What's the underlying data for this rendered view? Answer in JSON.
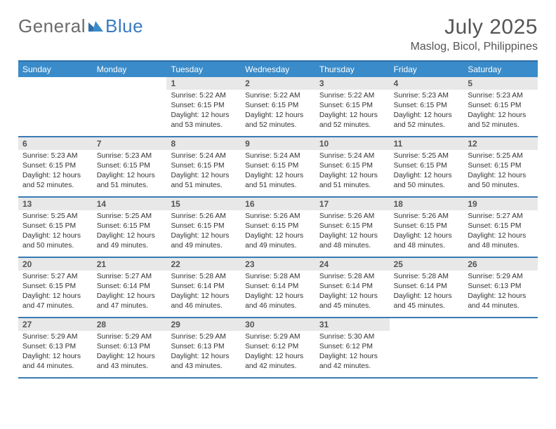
{
  "brand": {
    "part1": "General",
    "part2": "Blue"
  },
  "title": "July 2025",
  "location": "Maslog, Bicol, Philippines",
  "colors": {
    "header_bg": "#3a8bc9",
    "border": "#3a7bb5",
    "daynum_bg": "#e8e8e8",
    "text": "#333333",
    "brand_grey": "#6b6b6b",
    "brand_blue": "#3a7bbf"
  },
  "weekdays": [
    "Sunday",
    "Monday",
    "Tuesday",
    "Wednesday",
    "Thursday",
    "Friday",
    "Saturday"
  ],
  "weeks": [
    [
      null,
      null,
      {
        "n": "1",
        "sr": "5:22 AM",
        "ss": "6:15 PM",
        "dl": "12 hours and 53 minutes."
      },
      {
        "n": "2",
        "sr": "5:22 AM",
        "ss": "6:15 PM",
        "dl": "12 hours and 52 minutes."
      },
      {
        "n": "3",
        "sr": "5:22 AM",
        "ss": "6:15 PM",
        "dl": "12 hours and 52 minutes."
      },
      {
        "n": "4",
        "sr": "5:23 AM",
        "ss": "6:15 PM",
        "dl": "12 hours and 52 minutes."
      },
      {
        "n": "5",
        "sr": "5:23 AM",
        "ss": "6:15 PM",
        "dl": "12 hours and 52 minutes."
      }
    ],
    [
      {
        "n": "6",
        "sr": "5:23 AM",
        "ss": "6:15 PM",
        "dl": "12 hours and 52 minutes."
      },
      {
        "n": "7",
        "sr": "5:23 AM",
        "ss": "6:15 PM",
        "dl": "12 hours and 51 minutes."
      },
      {
        "n": "8",
        "sr": "5:24 AM",
        "ss": "6:15 PM",
        "dl": "12 hours and 51 minutes."
      },
      {
        "n": "9",
        "sr": "5:24 AM",
        "ss": "6:15 PM",
        "dl": "12 hours and 51 minutes."
      },
      {
        "n": "10",
        "sr": "5:24 AM",
        "ss": "6:15 PM",
        "dl": "12 hours and 51 minutes."
      },
      {
        "n": "11",
        "sr": "5:25 AM",
        "ss": "6:15 PM",
        "dl": "12 hours and 50 minutes."
      },
      {
        "n": "12",
        "sr": "5:25 AM",
        "ss": "6:15 PM",
        "dl": "12 hours and 50 minutes."
      }
    ],
    [
      {
        "n": "13",
        "sr": "5:25 AM",
        "ss": "6:15 PM",
        "dl": "12 hours and 50 minutes."
      },
      {
        "n": "14",
        "sr": "5:25 AM",
        "ss": "6:15 PM",
        "dl": "12 hours and 49 minutes."
      },
      {
        "n": "15",
        "sr": "5:26 AM",
        "ss": "6:15 PM",
        "dl": "12 hours and 49 minutes."
      },
      {
        "n": "16",
        "sr": "5:26 AM",
        "ss": "6:15 PM",
        "dl": "12 hours and 49 minutes."
      },
      {
        "n": "17",
        "sr": "5:26 AM",
        "ss": "6:15 PM",
        "dl": "12 hours and 48 minutes."
      },
      {
        "n": "18",
        "sr": "5:26 AM",
        "ss": "6:15 PM",
        "dl": "12 hours and 48 minutes."
      },
      {
        "n": "19",
        "sr": "5:27 AM",
        "ss": "6:15 PM",
        "dl": "12 hours and 48 minutes."
      }
    ],
    [
      {
        "n": "20",
        "sr": "5:27 AM",
        "ss": "6:15 PM",
        "dl": "12 hours and 47 minutes."
      },
      {
        "n": "21",
        "sr": "5:27 AM",
        "ss": "6:14 PM",
        "dl": "12 hours and 47 minutes."
      },
      {
        "n": "22",
        "sr": "5:28 AM",
        "ss": "6:14 PM",
        "dl": "12 hours and 46 minutes."
      },
      {
        "n": "23",
        "sr": "5:28 AM",
        "ss": "6:14 PM",
        "dl": "12 hours and 46 minutes."
      },
      {
        "n": "24",
        "sr": "5:28 AM",
        "ss": "6:14 PM",
        "dl": "12 hours and 45 minutes."
      },
      {
        "n": "25",
        "sr": "5:28 AM",
        "ss": "6:14 PM",
        "dl": "12 hours and 45 minutes."
      },
      {
        "n": "26",
        "sr": "5:29 AM",
        "ss": "6:13 PM",
        "dl": "12 hours and 44 minutes."
      }
    ],
    [
      {
        "n": "27",
        "sr": "5:29 AM",
        "ss": "6:13 PM",
        "dl": "12 hours and 44 minutes."
      },
      {
        "n": "28",
        "sr": "5:29 AM",
        "ss": "6:13 PM",
        "dl": "12 hours and 43 minutes."
      },
      {
        "n": "29",
        "sr": "5:29 AM",
        "ss": "6:13 PM",
        "dl": "12 hours and 43 minutes."
      },
      {
        "n": "30",
        "sr": "5:29 AM",
        "ss": "6:12 PM",
        "dl": "12 hours and 42 minutes."
      },
      {
        "n": "31",
        "sr": "5:30 AM",
        "ss": "6:12 PM",
        "dl": "12 hours and 42 minutes."
      },
      null,
      null
    ]
  ],
  "labels": {
    "sunrise": "Sunrise: ",
    "sunset": "Sunset: ",
    "daylight": "Daylight: "
  }
}
